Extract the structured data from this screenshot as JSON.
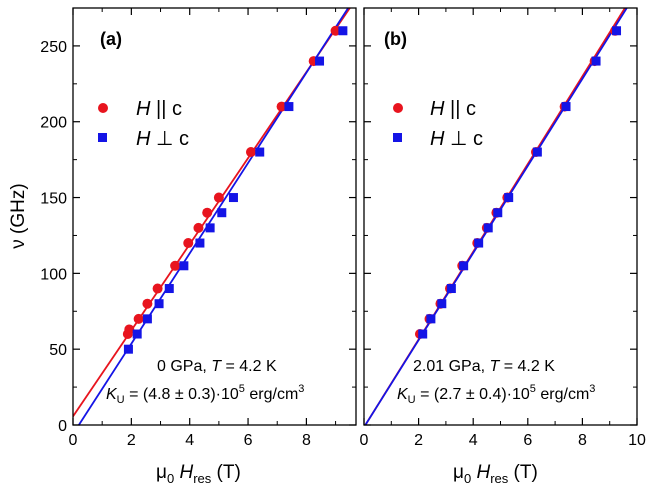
{
  "colors": {
    "parallel": "#e8141e",
    "perp": "#1414e6",
    "axis": "#000000"
  },
  "chart_data": [
    {
      "type": "scatter",
      "panel_label": "(a)",
      "xlim": [
        0,
        9.7
      ],
      "ylim": [
        0,
        275
      ],
      "xticks": [
        0,
        2,
        4,
        6,
        8
      ],
      "xminor": 1,
      "yticks": [
        0,
        50,
        100,
        150,
        200,
        250
      ],
      "yminor": 25,
      "xlabel_parts": [
        "μ",
        "0",
        " H",
        "res",
        " (T)"
      ],
      "ylabel": "ν (GHz)",
      "legend": [
        {
          "symbol": "H",
          "rel": " || c",
          "color": "parallel",
          "marker": "circle"
        },
        {
          "symbol": "H",
          "rel": " ⊥ c",
          "color": "perp",
          "marker": "square"
        }
      ],
      "annotation": {
        "line1_a": "0 GPa, ",
        "line1_b": "T",
        "line1_c": " = 4.2 K",
        "ku_k": "K",
        "ku_sub": "U",
        "ku_val": " = (4.8 ± 0.3)·10",
        "ku_exp": "5",
        "ku_unit": " erg/cm",
        "ku_unit_exp": "3"
      },
      "series": [
        {
          "name": "H || c",
          "marker": "circle",
          "color": "parallel",
          "x": [
            1.88,
            1.93,
            2.25,
            2.55,
            2.9,
            3.5,
            3.95,
            4.3,
            4.6,
            5.0,
            6.1,
            7.15,
            8.25,
            9.0
          ],
          "y": [
            60,
            63,
            70,
            80,
            90,
            105,
            120,
            130,
            140,
            150,
            180,
            210,
            240,
            260
          ],
          "fit": [
            [
              -0.2,
              0
            ],
            [
              9.7,
              281
            ]
          ]
        },
        {
          "name": "H ⊥ c",
          "marker": "square",
          "color": "perp",
          "x": [
            1.9,
            2.2,
            2.55,
            2.95,
            3.3,
            3.8,
            4.35,
            4.7,
            5.1,
            5.5,
            6.4,
            7.4,
            8.45,
            9.25
          ],
          "y": [
            50,
            60,
            70,
            80,
            90,
            105,
            120,
            130,
            140,
            150,
            180,
            210,
            240,
            260
          ],
          "fit": [
            [
              0.2,
              0
            ],
            [
              9.7,
              283
            ]
          ]
        }
      ]
    },
    {
      "type": "scatter",
      "panel_label": "(b)",
      "xlim": [
        0,
        10
      ],
      "ylim": [
        0,
        275
      ],
      "xticks": [
        0,
        2,
        4,
        6,
        8,
        10
      ],
      "xminor": 1,
      "yticks": [
        0,
        50,
        100,
        150,
        200,
        250
      ],
      "yminor": 25,
      "xlabel_parts": [
        "μ",
        "0",
        " H",
        "res",
        " (T)"
      ],
      "ylabel": "",
      "legend": [
        {
          "symbol": "H",
          "rel": " || c",
          "color": "parallel",
          "marker": "circle"
        },
        {
          "symbol": "H",
          "rel": " ⊥ c",
          "color": "perp",
          "marker": "square"
        }
      ],
      "annotation": {
        "line1_a": "2.01 GPa, ",
        "line1_b": "T",
        "line1_c": " = 4.2 K",
        "ku_k": "K",
        "ku_sub": "U",
        "ku_val": " = (2.7 ± 0.4)·10",
        "ku_exp": "5",
        "ku_unit": " erg/cm",
        "ku_unit_exp": "3"
      },
      "series": [
        {
          "name": "H || c",
          "marker": "circle",
          "color": "parallel",
          "x": [
            2.05,
            2.4,
            2.8,
            3.15,
            3.6,
            4.15,
            4.5,
            4.85,
            5.25,
            6.3,
            7.35,
            8.45,
            9.2
          ],
          "y": [
            60,
            70,
            80,
            90,
            105,
            120,
            130,
            140,
            150,
            180,
            210,
            240,
            260
          ],
          "fit": [
            [
              0.05,
              0
            ],
            [
              9.8,
              282
            ]
          ]
        },
        {
          "name": "H ⊥ c",
          "marker": "square",
          "color": "perp",
          "x": [
            2.15,
            2.45,
            2.85,
            3.2,
            3.65,
            4.2,
            4.55,
            4.9,
            5.3,
            6.35,
            7.4,
            8.5,
            9.25
          ],
          "y": [
            60,
            70,
            80,
            90,
            105,
            120,
            130,
            140,
            150,
            180,
            210,
            240,
            260
          ],
          "fit": [
            [
              0.05,
              0
            ],
            [
              9.8,
              280
            ]
          ]
        }
      ]
    }
  ]
}
